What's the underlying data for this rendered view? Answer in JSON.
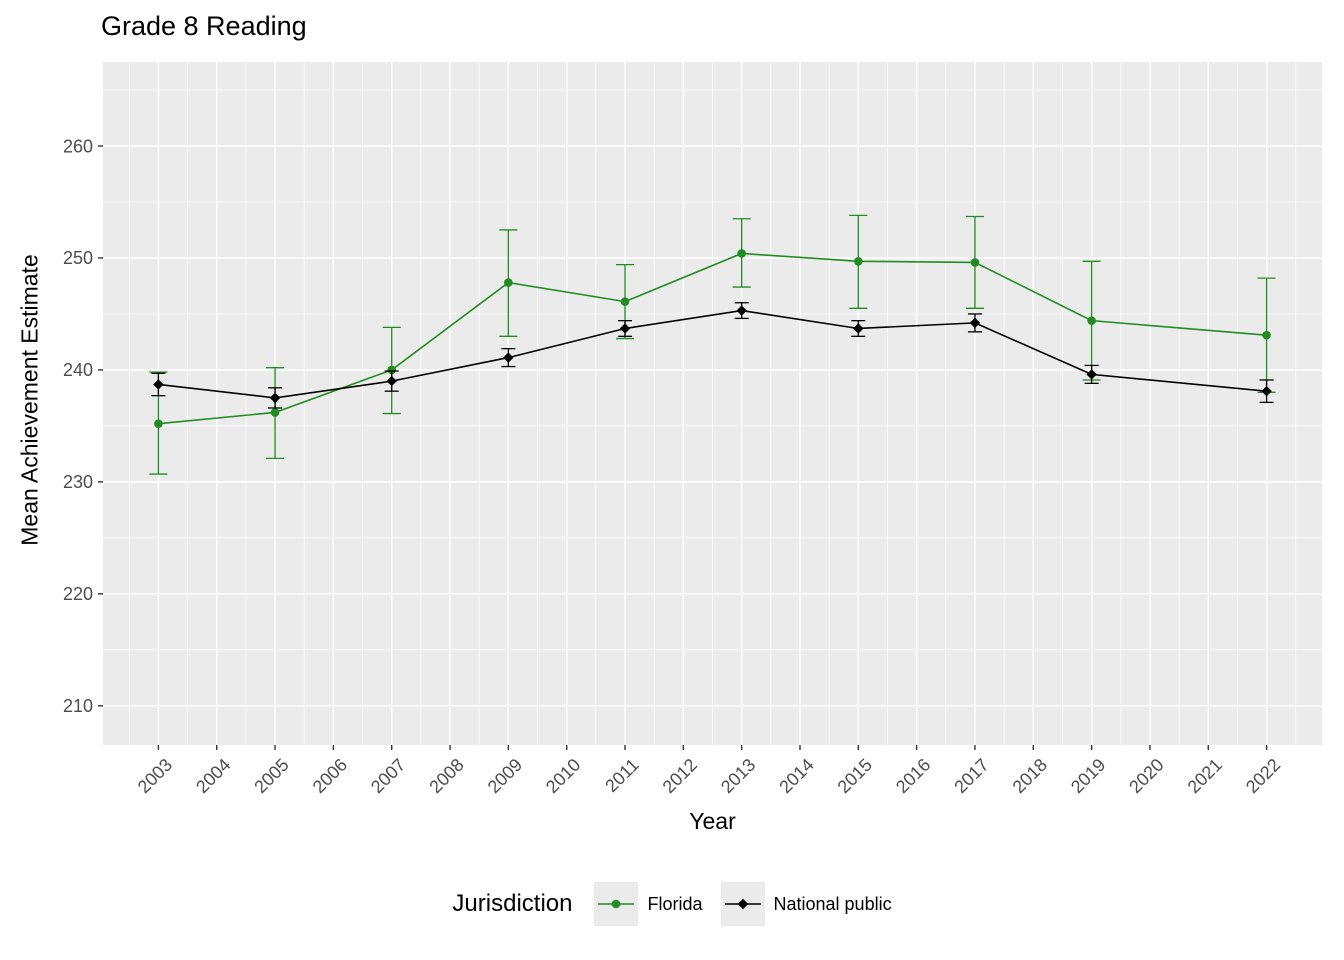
{
  "chart_data": {
    "type": "line",
    "title": "Grade 8 Reading",
    "xlabel": "Year",
    "ylabel": "Mean Achievement Estimate",
    "legend_title": "Jurisdiction",
    "legend_position": "bottom",
    "panel_bg": "#EBEBEB",
    "grid_color": "#FFFFFF",
    "tick_color": "#333333",
    "tick_label_color": "#4D4D4D",
    "grid": true,
    "xlim": [
      2002.05,
      2022.95
    ],
    "ylim": [
      206.5,
      267.5
    ],
    "x_ticks": [
      2003,
      2004,
      2005,
      2006,
      2007,
      2008,
      2009,
      2010,
      2011,
      2012,
      2013,
      2014,
      2015,
      2016,
      2017,
      2018,
      2019,
      2020,
      2021,
      2022
    ],
    "x_minor": [
      2002.5,
      2003.5,
      2004.5,
      2005.5,
      2006.5,
      2007.5,
      2008.5,
      2009.5,
      2010.5,
      2011.5,
      2012.5,
      2013.5,
      2014.5,
      2015.5,
      2016.5,
      2017.5,
      2018.5,
      2019.5,
      2020.5,
      2021.5,
      2022.5
    ],
    "y_ticks": [
      210,
      220,
      230,
      240,
      250,
      260
    ],
    "y_minor": [
      215,
      225,
      235,
      245,
      255,
      265
    ],
    "series": [
      {
        "name": "Florida",
        "color": "#228B22",
        "marker": "circle",
        "cap_halfwidth": 9,
        "x": [
          2003,
          2005,
          2007,
          2009,
          2011,
          2013,
          2015,
          2017,
          2019,
          2022
        ],
        "y": [
          235.2,
          236.2,
          240.0,
          247.8,
          246.1,
          250.4,
          249.7,
          249.6,
          244.4,
          243.1
        ],
        "err_low": [
          230.7,
          232.1,
          236.1,
          243.0,
          242.8,
          247.4,
          245.5,
          245.5,
          239.1,
          238.0
        ],
        "err_high": [
          239.8,
          240.2,
          243.8,
          252.5,
          249.4,
          253.5,
          253.8,
          253.7,
          249.7,
          248.2
        ]
      },
      {
        "name": "National public",
        "color": "#000000",
        "marker": "diamond",
        "cap_halfwidth": 7,
        "x": [
          2003,
          2005,
          2007,
          2009,
          2011,
          2013,
          2015,
          2017,
          2019,
          2022
        ],
        "y": [
          238.7,
          237.5,
          239.0,
          241.1,
          243.7,
          245.3,
          243.7,
          244.2,
          239.6,
          238.1
        ],
        "err_low": [
          237.7,
          236.6,
          238.1,
          240.3,
          243.0,
          244.6,
          243.0,
          243.4,
          238.8,
          237.1
        ],
        "err_high": [
          239.7,
          238.4,
          239.9,
          241.9,
          244.4,
          246.0,
          244.4,
          245.0,
          240.4,
          239.1
        ]
      }
    ]
  }
}
